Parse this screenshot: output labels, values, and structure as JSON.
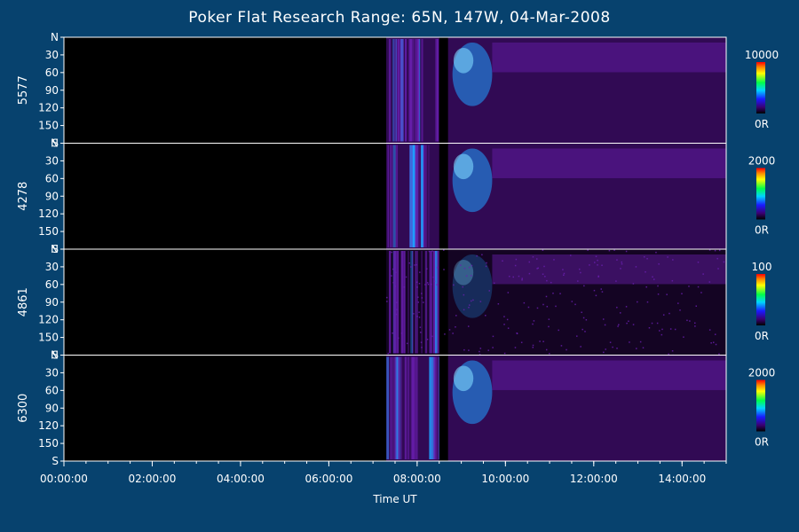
{
  "title": "Poker Flat Research Range: 65N, 147W, 04-Mar-2008",
  "colors": {
    "background": "#07426e",
    "panel": "#000000",
    "aurora_faint": "#3a0c63",
    "aurora_mid": "#6a1fb0",
    "aurora_bright": "#1fa0ff",
    "text": "#ffffff"
  },
  "chart_data": {
    "type": "heatmap",
    "xlabel": "Time UT",
    "x_ticks": [
      "00:00:00",
      "02:00:00",
      "04:00:00",
      "06:00:00",
      "08:00:00",
      "10:00:00",
      "12:00:00",
      "14:00:00"
    ],
    "x_range_hours": [
      0,
      15
    ],
    "y_ticks": [
      "N",
      "30",
      "60",
      "90",
      "120",
      "150",
      "S"
    ],
    "y_range_deg": [
      0,
      180
    ],
    "colorbar_palette": "rainbow",
    "panels": [
      {
        "name": "5577",
        "scale_max": "10000",
        "scale_min": "0R"
      },
      {
        "name": "4278",
        "scale_max": "2000",
        "scale_min": "0R"
      },
      {
        "name": "4861",
        "scale_max": "100",
        "scale_min": "0R"
      },
      {
        "name": "6300",
        "scale_max": "2000",
        "scale_min": "0R"
      }
    ],
    "features": {
      "data_onset_hours": 7.3,
      "data_gap_hours": [
        8.5,
        8.7
      ],
      "bright_emission_hours": [
        8.8,
        9.7
      ]
    }
  }
}
